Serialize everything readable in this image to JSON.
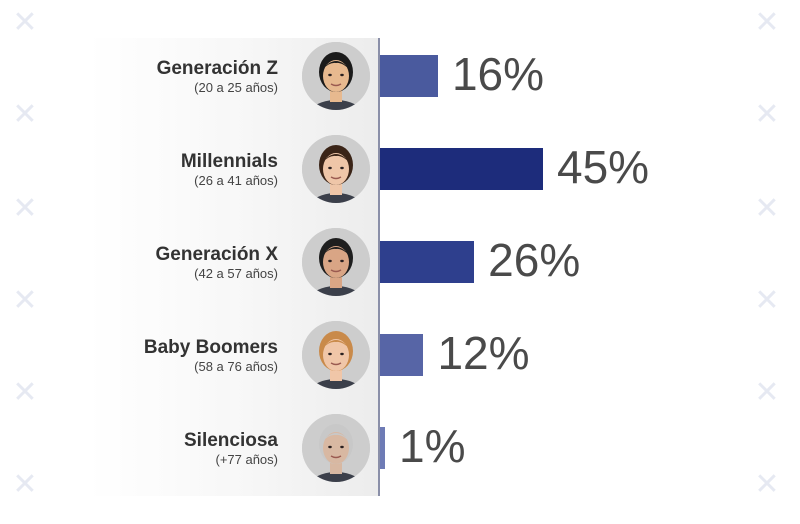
{
  "chart_data": {
    "type": "bar",
    "orientation": "horizontal",
    "categories": [
      "Generación Z",
      "Millennials",
      "Generación X",
      "Baby Boomers",
      "Silenciosa"
    ],
    "subtitles": [
      "(20 a 25 años)",
      "(26 a 41 años)",
      "(42 a 57 años)",
      "(58 a 76 años)",
      "(+77 años)"
    ],
    "values": [
      16,
      45,
      26,
      12,
      1
    ],
    "value_labels": [
      "16%",
      "45%",
      "26%",
      "12%",
      "1%"
    ],
    "bar_colors": [
      "#4a5a9e",
      "#1d2c7b",
      "#2e3f8d",
      "#5765a6",
      "#6e7bb5"
    ],
    "xlim": [
      0,
      100
    ],
    "grid": false,
    "legend": "none"
  },
  "avatars": [
    {
      "icon": "young-man-portrait-icon",
      "skin": "#e7b98f",
      "hair": "#1a1a1a"
    },
    {
      "icon": "woman-portrait-icon",
      "skin": "#efc6a8",
      "hair": "#3a2417"
    },
    {
      "icon": "man-portrait-icon",
      "skin": "#d9a585",
      "hair": "#1e1e1e"
    },
    {
      "icon": "older-woman-portrait-icon",
      "skin": "#f0c6a8",
      "hair": "#c98a4a"
    },
    {
      "icon": "elderly-man-portrait-icon",
      "skin": "#d8b8a2",
      "hair": "#c8c8c8"
    }
  ]
}
